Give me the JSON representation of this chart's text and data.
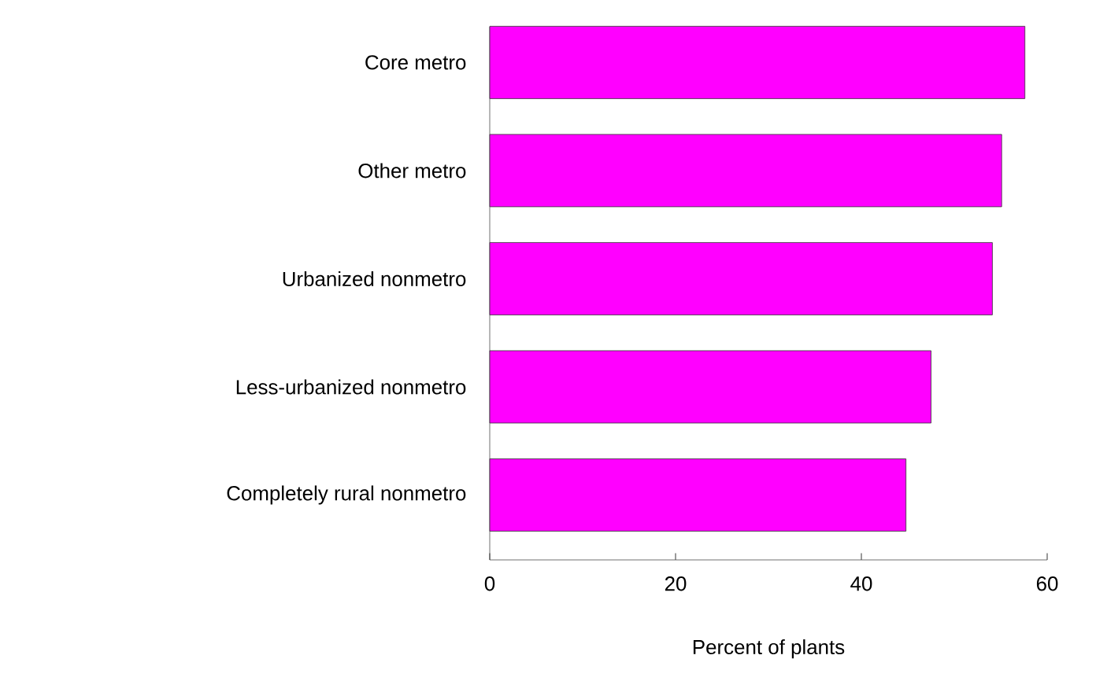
{
  "chart_data": {
    "type": "bar",
    "orientation": "horizontal",
    "categories": [
      "Core metro",
      "Other metro",
      "Urbanized nonmetro",
      "Less-urbanized nonmetro",
      "Completely rural nonmetro"
    ],
    "values": [
      57.6,
      55.1,
      54.1,
      47.5,
      44.8
    ],
    "color": "#ff00ff",
    "xlim": [
      0,
      60
    ],
    "xticks": [
      0,
      20,
      40,
      60
    ],
    "xlabel": "Percent of plants"
  }
}
